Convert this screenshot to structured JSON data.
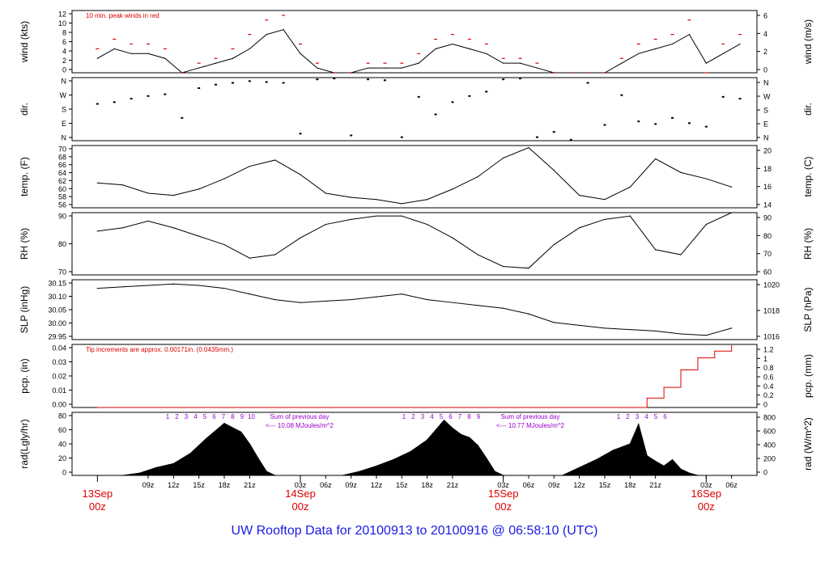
{
  "title": "UW Rooftop Data for 20100913  to  20100916 @ 06:58:10  (UTC)",
  "colors": {
    "axis": "#000000",
    "red": "#dd0000",
    "purple": "#9900cc",
    "blue": "#1a1ae6"
  },
  "x_axis": {
    "hour_ticks": [
      "09z",
      "12z",
      "15z",
      "18z",
      "21z",
      "03z",
      "06z",
      "09z",
      "12z",
      "15z",
      "18z",
      "21z",
      "03z",
      "06z",
      "09z",
      "12z",
      "15z",
      "18z",
      "21z",
      "03z",
      "06z"
    ],
    "date_labels": [
      {
        "day": "13Sep",
        "hour": "00z"
      },
      {
        "day": "14Sep",
        "hour": "00z"
      },
      {
        "day": "15Sep",
        "hour": "00z"
      },
      {
        "day": "16Sep",
        "hour": "00z"
      }
    ]
  },
  "chart_data": [
    {
      "type": "line",
      "name": "wind",
      "ylabel_left": "wind (kts)",
      "ylabel_right": "wind (m/s)",
      "yticks_left": [
        "0",
        "2",
        "4",
        "6",
        "8",
        "10",
        "12"
      ],
      "yticks_right": [
        "0",
        "2",
        "4",
        "6"
      ],
      "ylim": [
        0,
        13
      ],
      "annotation": "10 min. peak winds in red",
      "x_hours": [
        3,
        5,
        7,
        9,
        11,
        13,
        15,
        17,
        19,
        21,
        23,
        25,
        27,
        29,
        31,
        33,
        35,
        37,
        39,
        41,
        43,
        45,
        47,
        49,
        51,
        53,
        55,
        57,
        59,
        61,
        63,
        65,
        67,
        69,
        71,
        73,
        75,
        77,
        79
      ],
      "values": [
        3,
        5,
        4,
        4,
        3,
        0,
        1,
        2,
        3,
        5,
        8,
        9,
        4,
        1,
        0,
        0,
        1,
        1,
        1,
        2,
        5,
        6,
        5,
        4,
        2,
        2,
        1,
        0,
        0,
        0,
        0,
        2,
        4,
        5,
        6,
        8,
        2,
        4,
        6
      ],
      "peaks": [
        5,
        7,
        6,
        6,
        5,
        0,
        2,
        3,
        5,
        8,
        11,
        12,
        6,
        2,
        0,
        0,
        2,
        2,
        2,
        4,
        7,
        8,
        7,
        6,
        3,
        3,
        2,
        0,
        0,
        0,
        0,
        3,
        6,
        7,
        8,
        11,
        0,
        6,
        8
      ]
    },
    {
      "type": "scatter",
      "name": "dir",
      "ylabel_left": "dir.",
      "ylabel_right": "dir.",
      "yticks_left": [
        "N",
        "E",
        "S",
        "W",
        "N"
      ],
      "yticks_right": [
        "N",
        "E",
        "S",
        "W",
        "N"
      ],
      "ylim": [
        0,
        360
      ],
      "x_hours": [
        3,
        5,
        7,
        9,
        11,
        13,
        15,
        17,
        19,
        21,
        23,
        25,
        27,
        29,
        31,
        33,
        35,
        37,
        39,
        41,
        43,
        45,
        47,
        49,
        51,
        53,
        55,
        57,
        59,
        61,
        63,
        65,
        67,
        69,
        71,
        73,
        75,
        77,
        79
      ],
      "values": [
        210,
        220,
        240,
        255,
        265,
        130,
        300,
        320,
        330,
        340,
        335,
        330,
        40,
        350,
        355,
        30,
        350,
        345,
        20,
        250,
        150,
        220,
        255,
        280,
        350,
        355,
        20,
        50,
        5,
        330,
        90,
        260,
        110,
        95,
        130,
        100,
        80,
        250,
        240
      ]
    },
    {
      "type": "line",
      "name": "temp",
      "ylabel_left": "temp. (F)",
      "ylabel_right": "temp. (C)",
      "yticks_left": [
        "56",
        "58",
        "60",
        "62",
        "64",
        "66",
        "68",
        "70"
      ],
      "yticks_right": [
        "14",
        "16",
        "18",
        "20"
      ],
      "ylim": [
        56,
        71
      ],
      "x_hours": [
        3,
        6,
        9,
        12,
        15,
        18,
        21,
        24,
        27,
        30,
        33,
        36,
        39,
        42,
        45,
        48,
        51,
        54,
        57,
        60,
        63,
        66,
        69,
        72,
        75,
        78
      ],
      "values": [
        62,
        61.5,
        59.5,
        59,
        60.5,
        63,
        66,
        67.5,
        64,
        59.5,
        58.5,
        58,
        57,
        58,
        60.5,
        63.5,
        68,
        70.5,
        65,
        59,
        58,
        61,
        67.8,
        64.5,
        63,
        61
      ]
    },
    {
      "type": "line",
      "name": "rh",
      "ylabel_left": "RH (%)",
      "ylabel_right": "RH (%)",
      "yticks_left": [
        "70",
        "80",
        "90"
      ],
      "yticks_right": [
        "60",
        "70",
        "80",
        "90"
      ],
      "ylim": [
        60,
        97
      ],
      "x_hours": [
        3,
        6,
        9,
        12,
        15,
        18,
        21,
        24,
        27,
        30,
        33,
        36,
        39,
        42,
        45,
        48,
        51,
        54,
        57,
        60,
        63,
        66,
        69,
        72,
        75,
        78
      ],
      "values": [
        86,
        88,
        92,
        88,
        83,
        78,
        70,
        72,
        82,
        90,
        93,
        95,
        95,
        90,
        82,
        72,
        65,
        64,
        78,
        88,
        93,
        95,
        75,
        72,
        90,
        97
      ]
    },
    {
      "type": "line",
      "name": "slp",
      "ylabel_left": "SLP (inHg)",
      "ylabel_right": "SLP (hPa)",
      "yticks_left": [
        "29.95",
        "30.00",
        "30.05",
        "30.10",
        "30.15"
      ],
      "yticks_right": [
        "1016",
        "1018",
        "1020"
      ],
      "ylim": [
        29.95,
        30.16
      ],
      "x_hours": [
        3,
        6,
        9,
        12,
        15,
        18,
        21,
        24,
        27,
        30,
        33,
        36,
        39,
        42,
        45,
        48,
        51,
        54,
        57,
        60,
        63,
        66,
        69,
        72,
        75,
        78
      ],
      "values": [
        30.13,
        30.135,
        30.14,
        30.145,
        30.14,
        30.13,
        30.11,
        30.09,
        30.08,
        30.085,
        30.09,
        30.1,
        30.11,
        30.09,
        30.08,
        30.07,
        30.06,
        30.04,
        30.01,
        30.0,
        29.99,
        29.985,
        29.98,
        29.97,
        29.965,
        29.99
      ]
    },
    {
      "type": "line",
      "name": "pcp",
      "ylabel_left": "pcp. (in)",
      "ylabel_right": "pcp. (mm)",
      "yticks_left": [
        "0.00",
        "0.01",
        "0.02",
        "0.03",
        "0.04"
      ],
      "yticks_right": [
        "0",
        "0.2",
        "0.4",
        "0.6",
        "0.8",
        "1",
        "1.2"
      ],
      "ylim": [
        0,
        0.047
      ],
      "annotation": "Tip increments are approx. 0.00171in. (0.0435mm.)",
      "x_hours": [
        3,
        66,
        68,
        70,
        72,
        74,
        76,
        78
      ],
      "values": [
        0,
        0,
        0.007,
        0.015,
        0.028,
        0.037,
        0.042,
        0.046
      ]
    },
    {
      "type": "area",
      "name": "rad",
      "ylabel_left": "rad(Lgly/hr)",
      "ylabel_right": "rad (W/m^2)",
      "yticks_left": [
        "0",
        "20",
        "40",
        "60",
        "80"
      ],
      "yticks_right": [
        "0",
        "200",
        "400",
        "600",
        "800"
      ],
      "ylim": [
        0,
        80
      ],
      "annotations": [
        {
          "text": "Sum of previous day",
          "sub": "<--- 10.08 MJoules/m^2"
        },
        {
          "text": "Sum of previous day",
          "sub": "<--- 10.77 MJoules/m^2"
        }
      ],
      "hour_markers_day1": [
        "1",
        "2",
        "3",
        "4",
        "5",
        "6",
        "7",
        "8",
        "9",
        "10"
      ],
      "hour_markers_day2": [
        "1",
        "2",
        "3",
        "4",
        "5",
        "6",
        "7",
        "8",
        "9"
      ],
      "hour_markers_day3": [
        "1",
        "2",
        "3",
        "4",
        "5",
        "6"
      ],
      "x_hours": [
        3,
        6,
        8,
        10,
        12,
        14,
        16,
        18,
        20,
        21,
        22,
        23,
        24,
        26,
        28,
        32,
        34,
        36,
        38,
        40,
        42,
        44,
        45,
        46,
        47,
        48,
        49,
        50,
        51,
        52,
        53,
        58,
        60,
        62,
        64,
        66,
        67,
        68,
        69,
        70,
        71,
        72,
        73,
        74,
        76,
        78
      ],
      "values": [
        0,
        0,
        3,
        10,
        15,
        28,
        48,
        66,
        55,
        40,
        22,
        5,
        0,
        0,
        0,
        0,
        5,
        12,
        20,
        30,
        45,
        70,
        60,
        52,
        48,
        38,
        22,
        5,
        0,
        0,
        0,
        0,
        10,
        20,
        32,
        40,
        65,
        25,
        18,
        12,
        20,
        8,
        3,
        0,
        0,
        0
      ]
    }
  ]
}
